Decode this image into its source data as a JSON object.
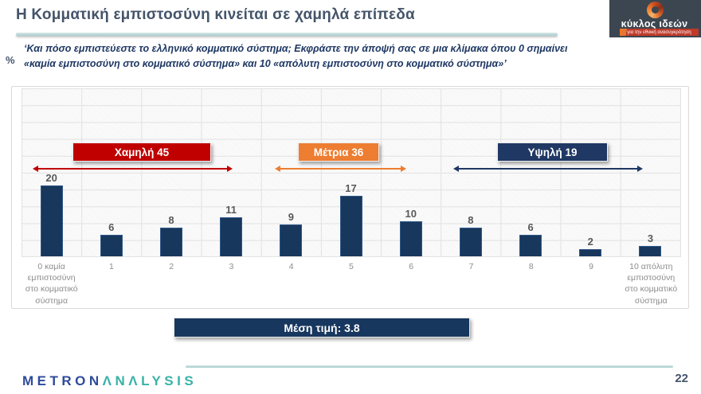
{
  "header": {
    "title": "Η Κομματική εμπιστοσύνη κινείται σε χαμηλά επίπεδα",
    "subtitle": "‘Και πόσο εμπιστεύεστε το ελληνικό κομματικό σύστημα; Εκφράστε την άποψή σας σε μια κλίμακα όπου 0 σημαίνει «καμία εμπιστοσύνη στο κομματικό σύστημα» και 10 «απόλυτη εμπιστοσύνη στο κομματικό σύστημα»’",
    "unit_label": "%",
    "brand": {
      "name": "κύκλος ιδεών",
      "tagline": "για την εθνική ανασυγκρότηση"
    }
  },
  "chart_data": {
    "type": "bar",
    "title": "",
    "xlabel": "",
    "ylabel": "%",
    "ylim": [
      0,
      48
    ],
    "grid": true,
    "bar_color": "#17375D",
    "categories": [
      "0 καμία εμπιστοσύνη στο κομματικό σύστημα",
      "1",
      "2",
      "3",
      "4",
      "5",
      "6",
      "7",
      "8",
      "9",
      "10 απόλυτη εμπιστοσύνη στο κομματικό σύστημα"
    ],
    "values": [
      20,
      6,
      8,
      11,
      9,
      17,
      10,
      8,
      6,
      2,
      3
    ],
    "bands": [
      {
        "label": "Χαμηλή 45",
        "color": "#C00000"
      },
      {
        "label": "Μέτρια 36",
        "color": "#ED7D31"
      },
      {
        "label": "Υψηλή 19",
        "color": "#1F3864"
      }
    ],
    "mean_label": "Μέση τιμή: 3.8"
  },
  "footer": {
    "logo_part1": "METRON",
    "logo_part2": "ΛNΛLYSIS",
    "page_number": "22"
  }
}
